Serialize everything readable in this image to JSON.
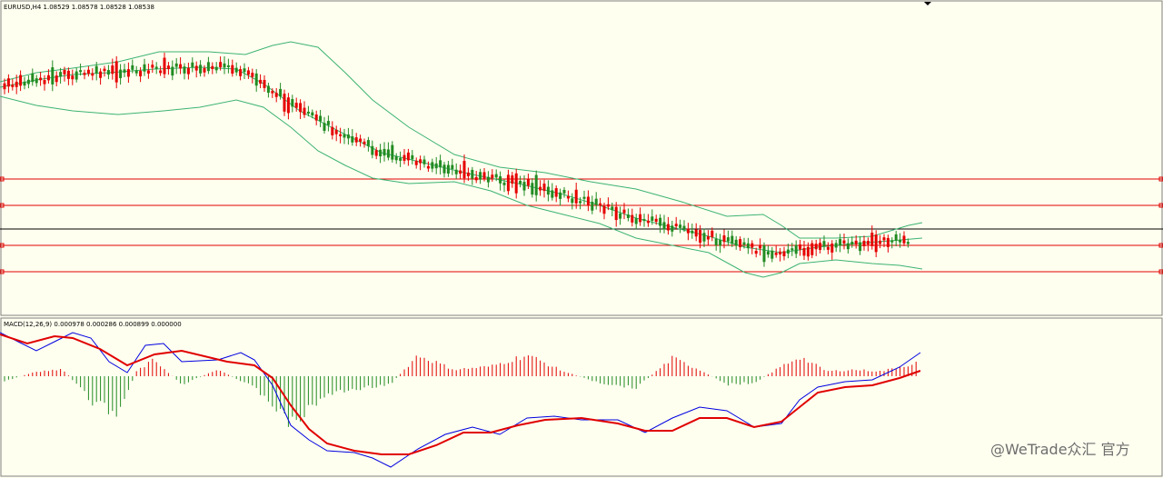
{
  "price_header": "EURUSD,H4  1.08529 1.08578 1.08528 1.08538",
  "macd_header": "MACD(12,26,9) 0.000978 0.000286 0.000899 0.000000",
  "watermark": "@WeTrade众汇 官方",
  "colors": {
    "background": "#fffff0",
    "bull_candle": "#228b22",
    "bear_candle": "#e60000",
    "bands": "#3cb371",
    "level_lines": "#e00000",
    "current_price_line": "#000000",
    "macd_main": "#0000e0",
    "macd_signal": "#e00000"
  },
  "chart_data": [
    {
      "type": "candlestick",
      "title": "EURUSD,H4",
      "ohlc_header": {
        "open": 1.08529,
        "high": 1.08578,
        "low": 1.08528,
        "close": 1.08538
      },
      "indicators": [
        "Bollinger Bands"
      ],
      "horizontal_levels": 4,
      "current_price_line": true,
      "grid": false
    },
    {
      "type": "line",
      "title": "MACD(12,26,9)",
      "values": [
        0.000978,
        0.000286,
        0.000899,
        0.0
      ],
      "series": [
        "main",
        "signal",
        "histogram"
      ],
      "grid": false
    }
  ]
}
